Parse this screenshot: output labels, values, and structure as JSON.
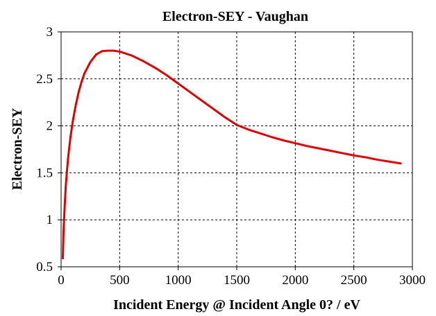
{
  "chart_data": {
    "type": "line",
    "title": "Electron-SEY - Vaughan",
    "xlabel": "Incident Energy @ Incident Angle 0? / eV",
    "ylabel": "Electron-SEY",
    "xlim": [
      0,
      3000
    ],
    "ylim": [
      0.5,
      3
    ],
    "xticks": [
      0,
      500,
      1000,
      1500,
      2000,
      2500,
      3000
    ],
    "yticks": [
      0.5,
      1,
      1.5,
      2,
      2.5,
      3
    ],
    "xtick_labels": [
      "0",
      "500",
      "1000",
      "1500",
      "2000",
      "2500",
      "3000"
    ],
    "ytick_labels": [
      "0.5",
      "1",
      "1.5",
      "2",
      "2.5",
      "3"
    ],
    "grid": true,
    "series": [
      {
        "color": "#e00000",
        "x": [
          15,
          20,
          30,
          40,
          50,
          60,
          80,
          100,
          125,
          150,
          175,
          200,
          250,
          300,
          350,
          400,
          450,
          500,
          600,
          700,
          800,
          900,
          1000,
          1100,
          1200,
          1300,
          1400,
          1500,
          1600,
          1700,
          1800,
          1900,
          2000,
          2100,
          2200,
          2300,
          2400,
          2500,
          2600,
          2700,
          2800,
          2900
        ],
        "y": [
          0.59,
          0.85,
          1.13,
          1.36,
          1.52,
          1.66,
          1.88,
          2.05,
          2.22,
          2.36,
          2.47,
          2.56,
          2.68,
          2.76,
          2.795,
          2.8,
          2.8,
          2.79,
          2.75,
          2.69,
          2.62,
          2.54,
          2.45,
          2.36,
          2.27,
          2.18,
          2.09,
          2.01,
          1.96,
          1.92,
          1.88,
          1.845,
          1.815,
          1.785,
          1.76,
          1.735,
          1.71,
          1.685,
          1.665,
          1.64,
          1.62,
          1.6
        ]
      }
    ]
  }
}
